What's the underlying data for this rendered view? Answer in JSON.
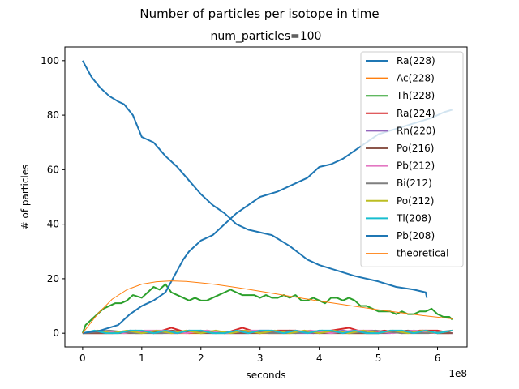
{
  "chart_data": {
    "type": "line",
    "suptitle": "Number of particles per isotope in time",
    "title": "num_particles=100",
    "xlabel": "seconds",
    "ylabel": "# of particles",
    "x_offset_label": "1e8",
    "xlim": [
      -0.3,
      6.5
    ],
    "ylim": [
      -5,
      105
    ],
    "x_tick_values": [
      0,
      1,
      2,
      3,
      4,
      5,
      6
    ],
    "x_tick_labels": [
      "0",
      "1",
      "2",
      "3",
      "4",
      "5",
      "6"
    ],
    "y_tick_values": [
      0,
      20,
      40,
      60,
      80,
      100
    ],
    "y_tick_labels": [
      "0",
      "20",
      "40",
      "60",
      "80",
      "100"
    ],
    "grid": false,
    "legend_position": "top-right",
    "series": [
      {
        "name": "Ra(228)",
        "color": "#1f77b4",
        "width": 2,
        "x": [
          0,
          0.05,
          0.15,
          0.3,
          0.45,
          0.6,
          0.7,
          0.85,
          1.0,
          1.2,
          1.4,
          1.6,
          1.8,
          2.0,
          2.2,
          2.4,
          2.6,
          2.8,
          3.0,
          3.2,
          3.5,
          3.8,
          4.0,
          4.3,
          4.6,
          5.0,
          5.3,
          5.6,
          5.8,
          5.82
        ],
        "y": [
          100,
          98,
          94,
          90,
          87,
          85,
          84,
          80,
          72,
          70,
          65,
          61,
          56,
          51,
          47,
          44,
          40,
          38,
          37,
          36,
          32,
          27,
          25,
          23,
          21,
          19,
          17,
          16,
          15,
          13
        ]
      },
      {
        "name": "Ac(228)",
        "color": "#ff7f0e",
        "width": 2,
        "x": [
          0,
          0.5,
          1,
          1.5,
          2,
          2.5,
          3,
          3.5,
          4,
          4.5,
          5,
          5.5,
          6,
          6.2
        ],
        "y": [
          0,
          0,
          0.5,
          0,
          0,
          0.5,
          0,
          0,
          0.5,
          0,
          0,
          0.5,
          0,
          0
        ]
      },
      {
        "name": "Th(228)",
        "color": "#2ca02c",
        "width": 2,
        "x": [
          0,
          0.05,
          0.15,
          0.25,
          0.35,
          0.45,
          0.55,
          0.65,
          0.75,
          0.85,
          1.0,
          1.1,
          1.2,
          1.3,
          1.4,
          1.5,
          1.6,
          1.7,
          1.8,
          1.9,
          2.0,
          2.1,
          2.2,
          2.3,
          2.4,
          2.5,
          2.6,
          2.7,
          2.8,
          2.9,
          3.0,
          3.1,
          3.2,
          3.3,
          3.4,
          3.5,
          3.6,
          3.7,
          3.8,
          3.9,
          4.0,
          4.1,
          4.2,
          4.3,
          4.4,
          4.5,
          4.6,
          4.7,
          4.8,
          4.9,
          5.0,
          5.1,
          5.2,
          5.3,
          5.4,
          5.5,
          5.6,
          5.7,
          5.8,
          5.9,
          6.0,
          6.1,
          6.2,
          6.25
        ],
        "y": [
          0,
          3,
          5,
          7,
          9,
          10,
          11,
          11,
          12,
          14,
          13,
          15,
          17,
          16,
          18,
          15,
          14,
          13,
          12,
          13,
          12,
          12,
          13,
          14,
          15,
          16,
          15,
          14,
          14,
          14,
          13,
          14,
          13,
          13,
          14,
          13,
          14,
          12,
          12,
          13,
          12,
          11,
          13,
          13,
          12,
          13,
          12,
          10,
          10,
          9,
          8,
          8,
          8,
          7,
          8,
          7,
          7,
          8,
          8,
          9,
          7,
          6,
          6,
          5
        ]
      },
      {
        "name": "Ra(224)",
        "color": "#d62728",
        "width": 2,
        "x": [
          0,
          0.3,
          0.6,
          0.9,
          1.2,
          1.5,
          1.8,
          2.1,
          2.4,
          2.7,
          3.0,
          3.3,
          3.6,
          3.9,
          4.2,
          4.5,
          4.8,
          5.1,
          5.4,
          5.7,
          6.0,
          6.25
        ],
        "y": [
          0,
          1,
          0,
          1,
          0,
          2,
          0,
          1,
          0,
          2,
          0,
          1,
          1,
          0,
          1,
          2,
          0,
          1,
          0,
          1,
          1,
          0
        ]
      },
      {
        "name": "Rn(220)",
        "color": "#9467bd",
        "width": 2,
        "x": [
          0,
          0.4,
          0.8,
          1.2,
          1.6,
          2.0,
          2.4,
          2.8,
          3.2,
          3.6,
          4.0,
          4.4,
          4.8,
          5.2,
          5.6,
          6.0,
          6.25
        ],
        "y": [
          0,
          0,
          1,
          0,
          0,
          1,
          0,
          0,
          1,
          0,
          0,
          1,
          0,
          0,
          1,
          0,
          0
        ]
      },
      {
        "name": "Po(216)",
        "color": "#8c564b",
        "width": 2,
        "x": [
          0,
          0.5,
          1,
          1.5,
          2,
          2.5,
          3,
          3.5,
          4,
          4.5,
          5,
          5.5,
          6,
          6.25
        ],
        "y": [
          0,
          0,
          0,
          1,
          0,
          0,
          0,
          1,
          0,
          0,
          0,
          1,
          0,
          0
        ]
      },
      {
        "name": "Pb(212)",
        "color": "#e377c2",
        "width": 2,
        "x": [
          0,
          0.35,
          0.7,
          1.05,
          1.4,
          1.75,
          2.1,
          2.45,
          2.8,
          3.15,
          3.5,
          3.85,
          4.2,
          4.55,
          4.9,
          5.25,
          5.6,
          5.95,
          6.25
        ],
        "y": [
          0,
          1,
          0,
          1,
          1,
          0,
          1,
          0,
          1,
          1,
          0,
          1,
          0,
          1,
          1,
          0,
          1,
          0,
          1
        ]
      },
      {
        "name": "Bi(212)",
        "color": "#7f7f7f",
        "width": 2,
        "x": [
          0,
          0.45,
          0.9,
          1.35,
          1.8,
          2.25,
          2.7,
          3.15,
          3.6,
          4.05,
          4.5,
          4.95,
          5.4,
          5.85,
          6.25
        ],
        "y": [
          0,
          1,
          0,
          0,
          1,
          0,
          1,
          0,
          0,
          1,
          0,
          1,
          0,
          0,
          1
        ]
      },
      {
        "name": "Po(212)",
        "color": "#bcbd22",
        "width": 2,
        "x": [
          0,
          0.25,
          0.5,
          0.75,
          1.0,
          1.25,
          1.5,
          1.75,
          2.0,
          2.25,
          2.5,
          2.75,
          3.0,
          3.25,
          3.5,
          3.75,
          4.0,
          4.25,
          4.5,
          4.75,
          5.0,
          5.25,
          5.5,
          5.75,
          6.0,
          6.25
        ],
        "y": [
          0,
          1,
          0,
          1,
          0,
          1,
          0,
          1,
          0,
          1,
          0,
          1,
          0,
          1,
          0,
          1,
          0,
          1,
          0,
          1,
          0,
          1,
          0,
          1,
          0,
          1
        ]
      },
      {
        "name": "Tl(208)",
        "color": "#17becf",
        "width": 2,
        "x": [
          0,
          0.2,
          0.4,
          0.6,
          0.8,
          1.0,
          1.2,
          1.4,
          1.6,
          1.8,
          2.0,
          2.2,
          2.4,
          2.6,
          2.8,
          3.0,
          3.2,
          3.4,
          3.6,
          3.8,
          4.0,
          4.2,
          4.4,
          4.6,
          4.8,
          5.0,
          5.2,
          5.4,
          5.6,
          5.8,
          6.0,
          6.25
        ],
        "y": [
          0,
          1,
          0,
          0,
          1,
          1,
          0,
          1,
          0,
          1,
          1,
          0,
          0,
          1,
          0,
          1,
          1,
          0,
          1,
          0,
          1,
          1,
          0,
          1,
          0,
          0,
          1,
          1,
          0,
          1,
          0,
          1
        ]
      },
      {
        "name": "Pb(208)",
        "color": "#1f77b4",
        "width": 2,
        "x": [
          0,
          0.3,
          0.6,
          0.8,
          1.0,
          1.2,
          1.4,
          1.5,
          1.6,
          1.7,
          1.8,
          2.0,
          2.2,
          2.4,
          2.5,
          2.6,
          2.8,
          3.0,
          3.3,
          3.6,
          3.8,
          4.0,
          4.2,
          4.4,
          4.6,
          4.8,
          5.0,
          5.3,
          5.6,
          5.9,
          6.1,
          6.25
        ],
        "y": [
          0,
          1,
          3,
          7,
          10,
          12,
          15,
          19,
          23,
          27,
          30,
          34,
          36,
          40,
          42,
          44,
          47,
          50,
          52,
          55,
          57,
          61,
          62,
          64,
          67,
          70,
          73,
          75,
          77,
          79,
          81,
          82
        ]
      },
      {
        "name": "theoretical",
        "color": "#ff7f0e",
        "width": 1,
        "x": [
          0,
          0.25,
          0.5,
          0.75,
          1.0,
          1.25,
          1.5,
          1.75,
          2.0,
          2.25,
          2.5,
          2.75,
          3.0,
          3.25,
          3.5,
          3.75,
          4.0,
          4.25,
          4.5,
          4.75,
          5.0,
          5.25,
          5.5,
          5.75,
          6.0,
          6.25
        ],
        "y": [
          0,
          7,
          12.5,
          16,
          18,
          18.9,
          19.2,
          19,
          18.5,
          17.9,
          17.1,
          16.3,
          15.4,
          14.5,
          13.6,
          12.7,
          11.8,
          11,
          10.2,
          9.4,
          8.6,
          7.9,
          7.2,
          6.5,
          5.9,
          5.3
        ]
      }
    ]
  }
}
